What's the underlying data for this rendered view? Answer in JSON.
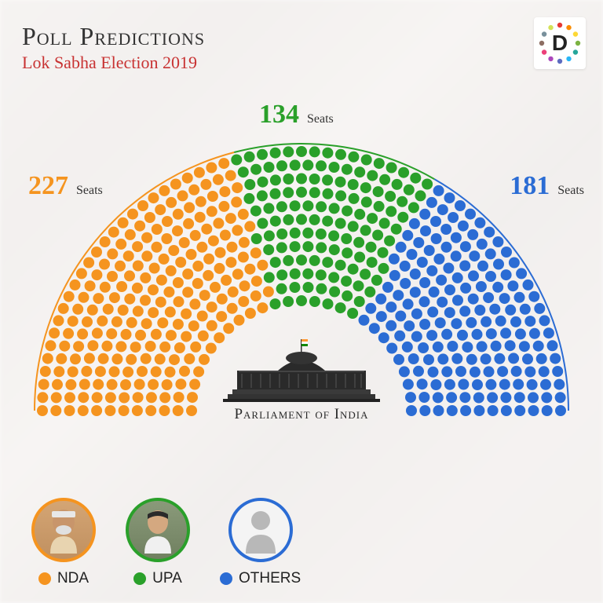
{
  "header": {
    "title": "Poll Predictions",
    "subtitle": "Lok Sabha Election 2019",
    "logo_letter": "D"
  },
  "chart": {
    "type": "hemicycle",
    "total_seats": 542,
    "rows": 12,
    "inner_radius": 140,
    "outer_radius": 330,
    "dot_radius": 7,
    "groups": [
      {
        "id": "nda",
        "label": "NDA",
        "seats": 227,
        "color": "#f5941f",
        "annot_label": "Seats"
      },
      {
        "id": "upa",
        "label": "UPA",
        "seats": 134,
        "color": "#2aa02a",
        "annot_label": "Seats"
      },
      {
        "id": "others",
        "label": "OTHERS",
        "seats": 181,
        "color": "#2b6cd4",
        "annot_label": "Seats"
      }
    ],
    "arc_stroke_width": 2,
    "background_color": "transparent"
  },
  "parliament_label": "Parliament of India",
  "legend": {
    "avatars": [
      {
        "border_color": "#f5941f",
        "placeholder": false
      },
      {
        "border_color": "#2aa02a",
        "placeholder": false
      },
      {
        "border_color": "#2b6cd4",
        "placeholder": true
      }
    ]
  },
  "logo_colors": [
    "#e53935",
    "#fb8c00",
    "#fdd835",
    "#7cb342",
    "#26a69a",
    "#29b6f6",
    "#5c6bc0",
    "#ab47bc",
    "#ec407a",
    "#8d6e63",
    "#78909c",
    "#d4e157"
  ]
}
